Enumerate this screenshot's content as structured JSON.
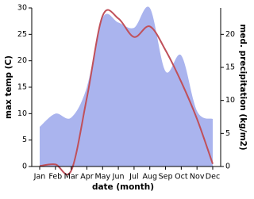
{
  "chart_data": {
    "type": "line-area",
    "categories": [
      "Jan",
      "Feb",
      "Mar",
      "Apr",
      "May",
      "Jun",
      "Jul",
      "Aug",
      "Sep",
      "Oct",
      "Nov",
      "Dec"
    ],
    "xlabel": "date (month)",
    "ylabel": "max temp (C)",
    "y2label": "med. precipitation (kg/m2)",
    "ylim": [
      0,
      30
    ],
    "yticks": [
      0,
      5,
      10,
      15,
      20,
      25,
      30
    ],
    "y2lim": [
      0,
      24
    ],
    "y2ticks": [
      0,
      5,
      10,
      15,
      20
    ],
    "series": [
      {
        "name": "med. precipitation",
        "axis": "y2",
        "kind": "area",
        "color": "#aab4ee",
        "values": [
          6.0,
          8.0,
          7.4,
          12.0,
          22.5,
          21.8,
          21.0,
          24.0,
          14.4,
          16.8,
          8.4,
          7.2
        ]
      },
      {
        "name": "max temp",
        "axis": "y",
        "kind": "line",
        "color": "#c0505a",
        "values": [
          0.1,
          0.4,
          -0.8,
          13.0,
          28.5,
          28.0,
          24.5,
          26.5,
          22.0,
          16.0,
          9.0,
          0.5
        ]
      }
    ]
  }
}
